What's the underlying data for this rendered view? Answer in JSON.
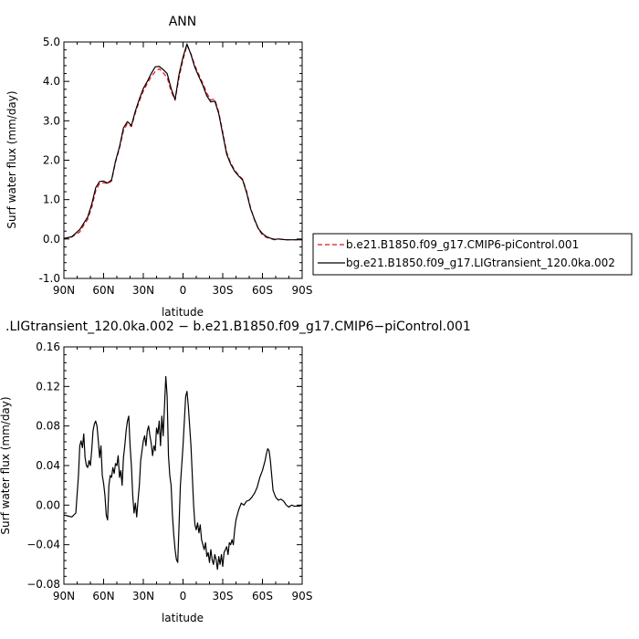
{
  "chart_data": [
    {
      "type": "line",
      "title": "ANN",
      "xlabel": "latitude",
      "ylabel": "Surf water flux (mm/day)",
      "xlim": [
        90,
        -90
      ],
      "ylim": [
        -1.0,
        5.0
      ],
      "xticks": [
        90,
        60,
        30,
        0,
        -30,
        -60,
        -90
      ],
      "xtick_labels": [
        "90N",
        "60N",
        "30N",
        "0",
        "30S",
        "60S",
        "90S"
      ],
      "yticks": [
        -1.0,
        0.0,
        1.0,
        2.0,
        3.0,
        4.0,
        5.0
      ],
      "ytick_labels": [
        "-1.0",
        "0.0",
        "1.0",
        "2.0",
        "3.0",
        "4.0",
        "5.0"
      ],
      "legend_position": "right",
      "series": [
        {
          "name": "b.e21.B1850.f09_g17.CMIP6-piControl.001",
          "color": "#e8101a",
          "dash": "dashed",
          "x": [
            90,
            84,
            78,
            75,
            72,
            69,
            66,
            63,
            60,
            57,
            54,
            51,
            48,
            45,
            42,
            39,
            36,
            33,
            30,
            27,
            24,
            21,
            18,
            15,
            12,
            9,
            6,
            3,
            0,
            -3,
            -6,
            -9,
            -12,
            -15,
            -18,
            -21,
            -24,
            -27,
            -30,
            -33,
            -36,
            -39,
            -42,
            -45,
            -48,
            -51,
            -54,
            -57,
            -60,
            -63,
            -66,
            -69,
            -72,
            -75,
            -78,
            -81,
            -84,
            -90
          ],
          "y": [
            0.02,
            0.05,
            0.18,
            0.35,
            0.5,
            0.8,
            1.22,
            1.41,
            1.43,
            1.4,
            1.47,
            1.95,
            2.3,
            2.75,
            2.93,
            2.85,
            3.2,
            3.5,
            3.75,
            3.95,
            4.12,
            4.25,
            4.32,
            4.22,
            4.1,
            3.75,
            3.52,
            4.1,
            4.55,
            4.92,
            4.7,
            4.4,
            4.17,
            3.95,
            3.7,
            3.53,
            3.55,
            3.22,
            2.72,
            2.2,
            1.93,
            1.75,
            1.62,
            1.52,
            1.22,
            0.8,
            0.48,
            0.25,
            0.1,
            0.04,
            0.01,
            -0.02,
            0.0,
            -0.01,
            -0.02,
            -0.02,
            -0.02,
            -0.02
          ]
        },
        {
          "name": "bg.e21.B1850.f09_g17.LIGtransient_120.0ka.002",
          "color": "#000000",
          "dash": "solid",
          "x": [
            90,
            84,
            78,
            75,
            72,
            69,
            66,
            63,
            60,
            57,
            54,
            51,
            48,
            45,
            42,
            39,
            36,
            33,
            30,
            27,
            24,
            21,
            18,
            15,
            12,
            9,
            6,
            3,
            0,
            -3,
            -6,
            -9,
            -12,
            -15,
            -18,
            -21,
            -24,
            -27,
            -30,
            -33,
            -36,
            -39,
            -42,
            -45,
            -48,
            -51,
            -54,
            -57,
            -60,
            -63,
            -66,
            -69,
            -72,
            -75,
            -78,
            -81,
            -84,
            -90
          ],
          "y": [
            0.01,
            0.06,
            0.24,
            0.4,
            0.56,
            0.88,
            1.3,
            1.46,
            1.47,
            1.42,
            1.5,
            1.98,
            2.34,
            2.82,
            2.98,
            2.88,
            3.25,
            3.55,
            3.82,
            4.0,
            4.2,
            4.37,
            4.38,
            4.3,
            4.2,
            3.82,
            3.54,
            4.18,
            4.62,
            4.95,
            4.68,
            4.35,
            4.12,
            3.9,
            3.63,
            3.48,
            3.5,
            3.18,
            2.66,
            2.15,
            1.9,
            1.72,
            1.6,
            1.5,
            1.18,
            0.77,
            0.5,
            0.26,
            0.14,
            0.06,
            0.02,
            -0.01,
            0.0,
            -0.01,
            -0.02,
            -0.02,
            -0.02,
            -0.02
          ]
        }
      ]
    },
    {
      "type": "line",
      "title": ".LIGtransient_120.0ka.002 − b.e21.B1850.f09_g17.CMIP6−piControl.001",
      "xlabel": "latitude",
      "ylabel": "Surf water flux (mm/day)",
      "xlim": [
        90,
        -90
      ],
      "ylim": [
        -0.08,
        0.16
      ],
      "xticks": [
        90,
        60,
        30,
        0,
        -30,
        -60,
        -90
      ],
      "xtick_labels": [
        "90N",
        "60N",
        "30N",
        "0",
        "30S",
        "60S",
        "90S"
      ],
      "yticks": [
        -0.08,
        -0.04,
        0.0,
        0.04,
        0.08,
        0.12,
        0.16
      ],
      "ytick_labels": [
        "−0.08",
        "−0.04",
        "0.00",
        "0.04",
        "0.08",
        "0.12",
        "0.16"
      ],
      "series": [
        {
          "color": "#000000",
          "dash": "solid",
          "x": [
            90,
            87,
            84,
            81,
            79,
            78,
            77,
            76,
            75,
            74,
            73,
            72,
            71,
            70,
            69,
            68,
            67,
            66,
            65,
            64,
            63,
            62,
            61,
            60,
            59,
            58,
            57,
            56,
            55,
            54,
            53,
            52,
            51,
            50,
            49,
            48,
            47,
            46,
            45,
            44,
            43,
            42,
            41,
            40,
            39,
            38,
            37,
            36,
            35,
            34,
            33,
            32,
            31,
            30,
            29,
            28,
            27,
            26,
            25,
            24,
            23,
            22,
            21,
            20,
            19,
            18,
            17,
            16,
            15,
            14,
            13,
            12,
            11,
            10,
            9,
            8,
            7,
            6,
            5,
            4,
            3,
            2,
            1,
            0,
            -1,
            -2,
            -3,
            -4,
            -5,
            -6,
            -7,
            -8,
            -9,
            -10,
            -11,
            -12,
            -13,
            -14,
            -15,
            -16,
            -17,
            -18,
            -19,
            -20,
            -21,
            -22,
            -23,
            -24,
            -25,
            -26,
            -27,
            -28,
            -29,
            -30,
            -31,
            -32,
            -33,
            -34,
            -35,
            -36,
            -37,
            -38,
            -39,
            -40,
            -42,
            -44,
            -46,
            -48,
            -50,
            -52,
            -54,
            -56,
            -58,
            -60,
            -62,
            -63,
            -64,
            -65,
            -66,
            -67,
            -68,
            -70,
            -72,
            -74,
            -76,
            -78,
            -80,
            -82,
            -84,
            -86,
            -88,
            -90
          ],
          "y": [
            -0.01,
            -0.011,
            -0.012,
            -0.008,
            0.03,
            0.06,
            0.065,
            0.058,
            0.072,
            0.048,
            0.04,
            0.038,
            0.045,
            0.04,
            0.055,
            0.075,
            0.082,
            0.085,
            0.08,
            0.065,
            0.048,
            0.06,
            0.03,
            0.022,
            0.01,
            -0.01,
            -0.015,
            0.02,
            0.03,
            0.028,
            0.038,
            0.032,
            0.042,
            0.04,
            0.05,
            0.028,
            0.035,
            0.02,
            0.048,
            0.06,
            0.075,
            0.085,
            0.09,
            0.06,
            0.04,
            0.01,
            -0.008,
            0.002,
            -0.012,
            0.005,
            0.02,
            0.045,
            0.055,
            0.065,
            0.07,
            0.06,
            0.075,
            0.08,
            0.07,
            0.062,
            0.05,
            0.06,
            0.055,
            0.078,
            0.072,
            0.085,
            0.06,
            0.09,
            0.07,
            0.1,
            0.13,
            0.11,
            0.05,
            0.03,
            0.02,
            -0.01,
            -0.03,
            -0.045,
            -0.055,
            -0.058,
            -0.02,
            0.02,
            0.04,
            0.06,
            0.085,
            0.11,
            0.115,
            0.1,
            0.08,
            0.06,
            0.03,
            0.0,
            -0.02,
            -0.025,
            -0.018,
            -0.028,
            -0.02,
            -0.035,
            -0.04,
            -0.045,
            -0.038,
            -0.052,
            -0.048,
            -0.058,
            -0.045,
            -0.055,
            -0.06,
            -0.05,
            -0.055,
            -0.065,
            -0.052,
            -0.06,
            -0.05,
            -0.062,
            -0.048,
            -0.045,
            -0.042,
            -0.05,
            -0.038,
            -0.04,
            -0.035,
            -0.04,
            -0.025,
            -0.015,
            -0.005,
            0.002,
            0.0,
            0.004,
            0.005,
            0.008,
            0.012,
            0.018,
            0.028,
            0.035,
            0.045,
            0.052,
            0.057,
            0.055,
            0.045,
            0.03,
            0.015,
            0.008,
            0.005,
            0.006,
            0.004,
            0.0,
            -0.002,
            0.0,
            -0.001,
            -0.001,
            -0.001,
            0.0
          ]
        }
      ]
    }
  ]
}
